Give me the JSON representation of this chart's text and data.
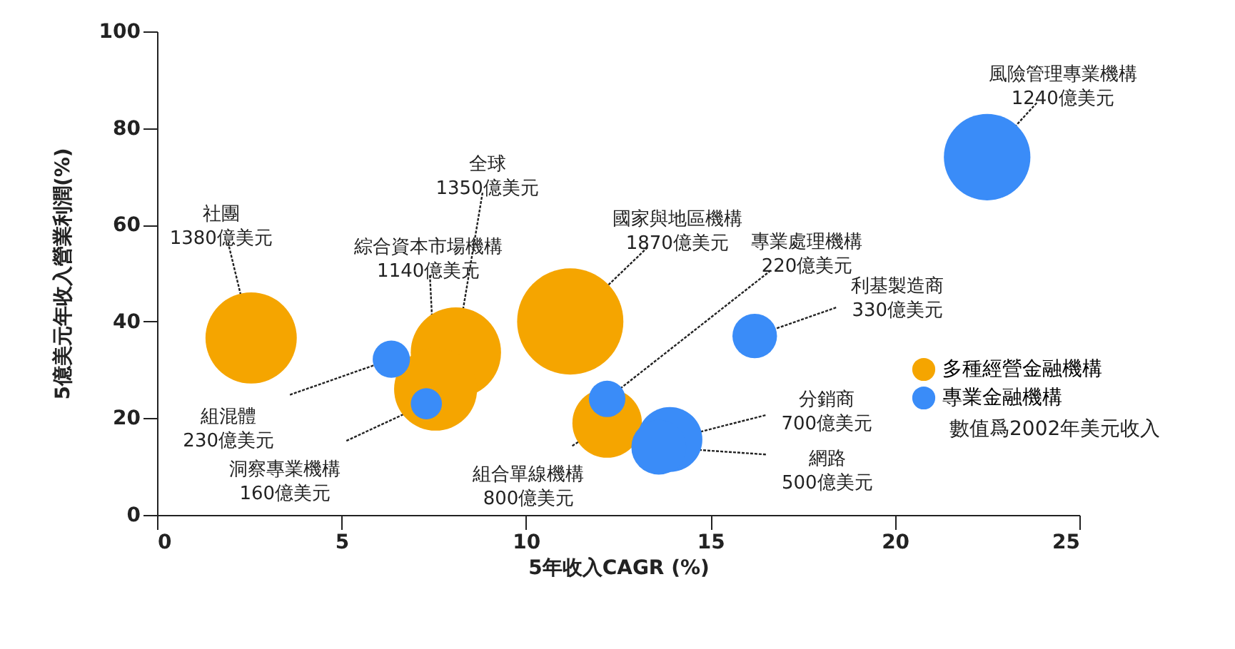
{
  "chart_data": {
    "type": "bubble",
    "xlabel": "5年收入CAGR (%)",
    "ylabel": "5億美元年收入營業利潤(%)",
    "xlim": [
      0,
      25
    ],
    "xticks": [
      0,
      5,
      10,
      15,
      20,
      25
    ],
    "ylim": [
      0,
      100
    ],
    "yticks": [
      0,
      20,
      40,
      60,
      80,
      100
    ],
    "grid": false,
    "legend": "right",
    "series": [
      {
        "name": "多種經營金融機構",
        "color": "#f5a500",
        "x": [
          2.55,
          8.1,
          7.55,
          11.2,
          12.2
        ],
        "values": [
          36.6,
          33.6,
          26,
          40,
          19
        ],
        "sizes": [
          0.738,
          0.722,
          0.61,
          1,
          0.428
        ]
      },
      {
        "name": "專業金融機構",
        "color": "#3a8cf8",
        "x": [
          6.35,
          7.3,
          12.2,
          16.2,
          13.9,
          13.6,
          22.5
        ],
        "values": [
          32.2,
          23,
          24,
          37,
          15.6,
          14,
          74
        ],
        "sizes": [
          0.123,
          0.086,
          0.118,
          0.176,
          0.374,
          0.267,
          0.663
        ]
      }
    ],
    "annotations": [
      {
        "text": "社團\n1380億美元",
        "x": 2.55,
        "y": 36.6
      },
      {
        "text": "全球\n1350億美元",
        "x": 8.1,
        "y": 33.6
      },
      {
        "text": "綜合資本市場機構\n1140億美元",
        "x": 7.55,
        "y": 26
      },
      {
        "text": "國家與地區機構\n1870億美元",
        "x": 11.2,
        "y": 40
      },
      {
        "text": "組合單線機構\n800億美元",
        "x": 12.2,
        "y": 19
      },
      {
        "text": "組混體\n230億美元",
        "x": 6.35,
        "y": 32.2
      },
      {
        "text": "洞察專業機構\n160億美元",
        "x": 7.3,
        "y": 23
      },
      {
        "text": "專業處理機構\n220億美元",
        "x": 12.2,
        "y": 24
      },
      {
        "text": "利基製造商\n330億美元",
        "x": 16.2,
        "y": 37
      },
      {
        "text": "分銷商\n700億美元",
        "x": 13.9,
        "y": 15.6
      },
      {
        "text": "網路\n500億美元",
        "x": 13.6,
        "y": 14
      },
      {
        "text": "風險管理專業機構\n1240億美元",
        "x": 22.5,
        "y": 74
      },
      "數值爲2002年美元收入"
    ]
  }
}
